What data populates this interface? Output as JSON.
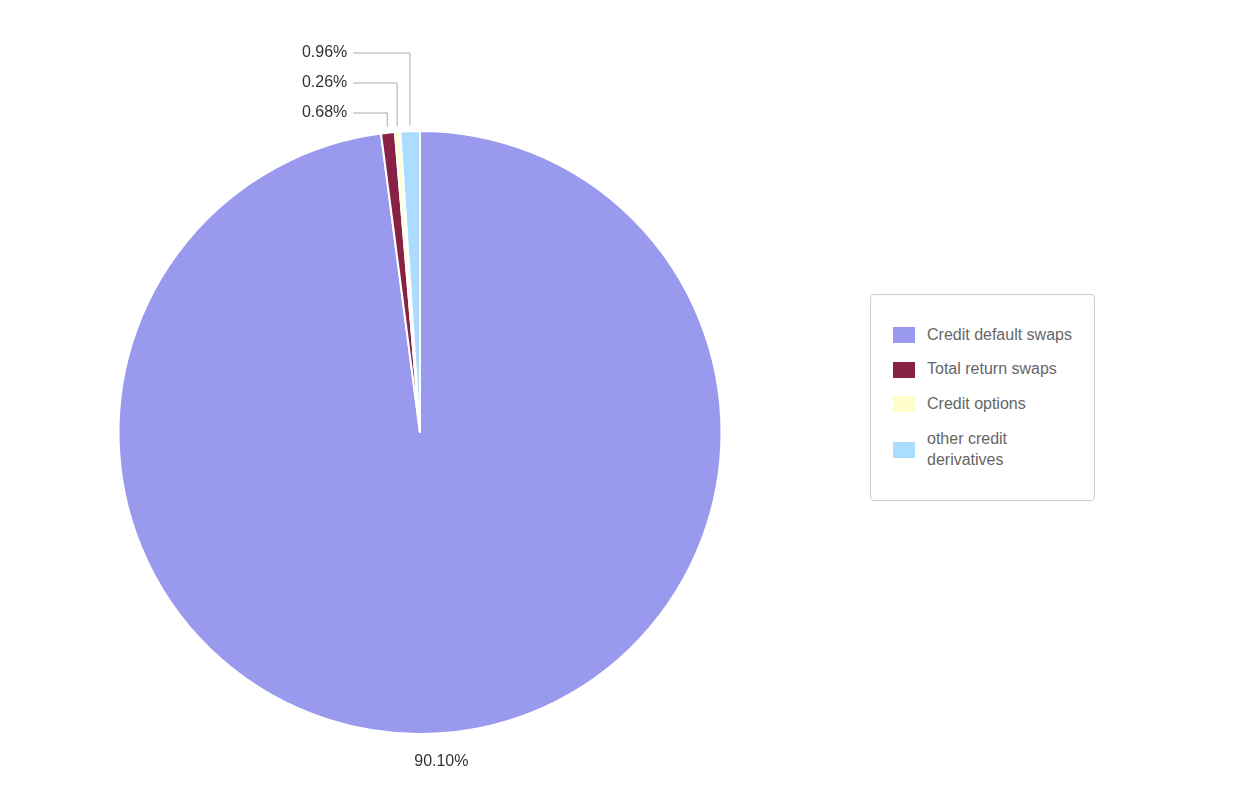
{
  "chart_data": {
    "type": "pie",
    "categories": [
      "Credit default swaps",
      "Total return swaps",
      "Credit options",
      "other credit\nderivatives"
    ],
    "values": [
      90.1,
      0.68,
      0.26,
      0.96
    ],
    "value_labels": [
      "90.10%",
      "0.68%",
      "0.26%",
      "0.96%"
    ],
    "colors": [
      "#9999ee",
      "#882244",
      "#ffffcc",
      "#aaddff"
    ],
    "data_labels": true,
    "legend": "right"
  }
}
